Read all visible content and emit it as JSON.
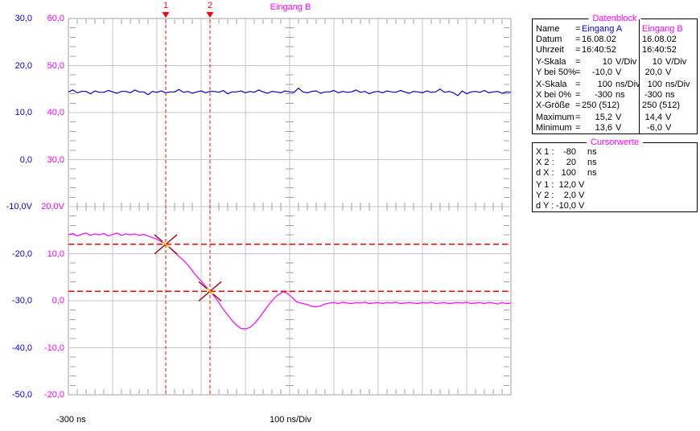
{
  "colors": {
    "channel_a": "#0000ff",
    "channel_b": "#ff00ff",
    "trace_a": "#0000cc",
    "trace_b": "#ff00ff",
    "cursor": "#ff0000",
    "cursor_x_marker": "#991111",
    "cursor_highlight": "#ffd800",
    "grid": "#c4c4c4",
    "grid_border": "#a0a0a0"
  },
  "cursors_top": {
    "marker1_label": "1",
    "marker2_label": "2"
  },
  "chart_data": {
    "type": "line",
    "title": "Eingang B",
    "x": {
      "unit": "ns",
      "min": -300,
      "max": 700,
      "per_div": 100,
      "divisions": 10,
      "start_label": "-300 ns",
      "scale_label": "100 ns/Div"
    },
    "y_left_A": {
      "name": "Eingang A",
      "unit": "V",
      "per_div": 10,
      "center_50pct": -10,
      "ticks": [
        "30,0",
        "20,0",
        "10,0",
        "0,0",
        "-10,0V",
        "-20,0",
        "-30,0",
        "-40,0",
        "-50,0"
      ]
    },
    "y_left_B": {
      "name": "Eingang B",
      "unit": "V",
      "per_div": 10,
      "center_50pct": 20,
      "ticks": [
        "60,0",
        "50,0",
        "40,0",
        "30,0",
        "20,0V",
        "10,0",
        "0,0",
        "-10,0",
        "-20,0"
      ]
    },
    "cursors": {
      "x1_ns": -80,
      "x2_ns": 20,
      "dx_ns": 100,
      "y1_v": 12.0,
      "y2_v": 2.0,
      "dy_v": -10.0
    },
    "series": [
      {
        "name": "Eingang A",
        "axis": "A",
        "color": "#0000cc",
        "t_start": -300,
        "t_step": 10,
        "values": [
          14.4,
          14.8,
          14.2,
          14.5,
          14.5,
          14.0,
          14.6,
          14.3,
          14.3,
          14.7,
          14.4,
          14.1,
          14.5,
          14.5,
          14.2,
          14.8,
          14.4,
          14.4,
          13.8,
          14.5,
          14.3,
          14.6,
          14.2,
          14.4,
          14.4,
          14.9,
          14.3,
          14.5,
          14.1,
          14.4,
          14.6,
          14.2,
          14.5,
          14.5,
          14.3,
          14.7,
          14.0,
          14.4,
          14.4,
          14.6,
          14.2,
          14.5,
          14.3,
          14.8,
          14.4,
          14.1,
          14.5,
          14.4,
          14.2,
          14.6,
          14.4,
          14.3,
          15.2,
          14.4,
          14.2,
          14.5,
          14.6,
          14.1,
          14.4,
          14.4,
          14.7,
          14.2,
          14.5,
          14.3,
          14.4,
          14.8,
          14.3,
          14.5,
          14.0,
          14.4,
          14.5,
          14.2,
          14.6,
          14.4,
          14.3,
          14.7,
          14.4,
          14.1,
          14.5,
          14.4,
          14.2,
          14.6,
          14.3,
          14.4,
          15.0,
          14.3,
          14.5,
          14.2,
          13.6,
          14.6,
          14.0,
          14.4,
          14.5,
          14.3,
          14.7,
          14.2,
          14.4,
          14.5,
          14.1,
          14.4,
          14.3
        ]
      },
      {
        "name": "Eingang B",
        "axis": "B",
        "color": "#ff00ff",
        "points": [
          [
            -300,
            14.0
          ],
          [
            -290,
            14.3
          ],
          [
            -280,
            13.8
          ],
          [
            -270,
            14.1
          ],
          [
            -260,
            14.4
          ],
          [
            -250,
            13.9
          ],
          [
            -240,
            14.2
          ],
          [
            -230,
            14.0
          ],
          [
            -220,
            14.3
          ],
          [
            -210,
            13.8
          ],
          [
            -200,
            14.1
          ],
          [
            -190,
            14.4
          ],
          [
            -180,
            13.9
          ],
          [
            -170,
            14.2
          ],
          [
            -160,
            14.0
          ],
          [
            -150,
            14.2
          ],
          [
            -140,
            13.9
          ],
          [
            -130,
            14.1
          ],
          [
            -120,
            13.8
          ],
          [
            -110,
            13.4
          ],
          [
            -100,
            13.1
          ],
          [
            -95,
            12.8
          ],
          [
            -90,
            12.5
          ],
          [
            -85,
            12.3
          ],
          [
            -80,
            12.0
          ],
          [
            -70,
            11.2
          ],
          [
            -60,
            10.3
          ],
          [
            -50,
            9.4
          ],
          [
            -40,
            8.6
          ],
          [
            -30,
            7.6
          ],
          [
            -20,
            6.4
          ],
          [
            -10,
            5.2
          ],
          [
            0,
            4.2
          ],
          [
            10,
            3.1
          ],
          [
            20,
            2.0
          ],
          [
            30,
            0.9
          ],
          [
            40,
            -0.4
          ],
          [
            50,
            -1.8
          ],
          [
            60,
            -3.0
          ],
          [
            70,
            -4.2
          ],
          [
            80,
            -5.2
          ],
          [
            90,
            -5.9
          ],
          [
            100,
            -6.0
          ],
          [
            110,
            -5.7
          ],
          [
            120,
            -4.9
          ],
          [
            130,
            -3.8
          ],
          [
            140,
            -2.5
          ],
          [
            150,
            -1.2
          ],
          [
            160,
            0.0
          ],
          [
            170,
            1.0
          ],
          [
            180,
            1.6
          ],
          [
            185,
            1.9
          ],
          [
            190,
            1.8
          ],
          [
            200,
            1.2
          ],
          [
            210,
            0.3
          ],
          [
            215,
            -0.2
          ],
          [
            220,
            -0.4
          ],
          [
            230,
            -0.6
          ],
          [
            240,
            -0.8
          ],
          [
            250,
            -1.2
          ],
          [
            260,
            -1.3
          ],
          [
            270,
            -1.1
          ],
          [
            280,
            -0.7
          ],
          [
            290,
            -0.5
          ],
          [
            300,
            -0.4
          ],
          [
            310,
            -0.6
          ],
          [
            320,
            -0.3
          ],
          [
            330,
            -0.5
          ],
          [
            340,
            -0.6
          ],
          [
            350,
            -0.4
          ],
          [
            360,
            -0.5
          ],
          [
            370,
            -0.3
          ],
          [
            380,
            -0.6
          ],
          [
            390,
            -0.5
          ],
          [
            400,
            -0.4
          ],
          [
            410,
            -0.6
          ],
          [
            420,
            -0.4
          ],
          [
            430,
            -0.5
          ],
          [
            440,
            -0.3
          ],
          [
            450,
            -0.6
          ],
          [
            460,
            -0.5
          ],
          [
            470,
            -0.4
          ],
          [
            480,
            -0.5
          ],
          [
            490,
            -0.6
          ],
          [
            500,
            -0.4
          ],
          [
            510,
            -0.5
          ],
          [
            520,
            -0.3
          ],
          [
            530,
            -0.6
          ],
          [
            540,
            -0.5
          ],
          [
            550,
            -0.4
          ],
          [
            560,
            -0.6
          ],
          [
            570,
            -0.5
          ],
          [
            580,
            -0.4
          ],
          [
            590,
            -0.5
          ],
          [
            600,
            -0.3
          ],
          [
            610,
            -0.6
          ],
          [
            620,
            -0.5
          ],
          [
            630,
            -0.4
          ],
          [
            640,
            -0.6
          ],
          [
            650,
            -0.4
          ],
          [
            660,
            -0.5
          ],
          [
            670,
            -0.7
          ],
          [
            680,
            -0.4
          ],
          [
            690,
            -0.6
          ],
          [
            700,
            -0.5
          ]
        ]
      }
    ]
  },
  "datenblock": {
    "title": "Datenblock",
    "rows": [
      {
        "label": "Name",
        "eq": "=",
        "a": {
          "text": "Eingang A",
          "color": "#0000ff"
        },
        "b": {
          "text": "Eingang B",
          "color": "#ff00ff"
        }
      },
      {
        "label": "Datum",
        "eq": "=",
        "a": {
          "text": "16.08.02"
        },
        "b": {
          "text": "16.08.02"
        }
      },
      {
        "label": "Uhrzeit",
        "eq": "=",
        "a": {
          "text": "16:40:52"
        },
        "b": {
          "text": "16:40:52"
        }
      },
      {
        "label": "Y-Skala",
        "eq": "=",
        "a": {
          "num": "10",
          "unit": "V/Div"
        },
        "b": {
          "num": "10",
          "unit": "V/Div"
        },
        "gap": true
      },
      {
        "label": "Y bei 50%",
        "eq": "=",
        "a": {
          "num": "-10,0",
          "unit": "V"
        },
        "b": {
          "num": "20,0",
          "unit": "V"
        }
      },
      {
        "label": "X-Skala",
        "eq": "=",
        "a": {
          "num": "100",
          "unit": "ns/Div"
        },
        "b": {
          "num": "100",
          "unit": "ns/Div"
        },
        "gap": true
      },
      {
        "label": "X bei 0%",
        "eq": "=",
        "a": {
          "num": "-300",
          "unit": "ns"
        },
        "b": {
          "num": "-300",
          "unit": "ns"
        }
      },
      {
        "label": "X-Größe",
        "eq": "=",
        "a": {
          "text": "250 (512)"
        },
        "b": {
          "text": "250 (512)"
        }
      },
      {
        "label": "Maximum",
        "eq": "=",
        "a": {
          "num": "15,2",
          "unit": "V"
        },
        "b": {
          "num": "14,4",
          "unit": "V"
        },
        "gap": true
      },
      {
        "label": "Minimum",
        "eq": "=",
        "a": {
          "num": "13,6",
          "unit": "V"
        },
        "b": {
          "num": "-6,0",
          "unit": "V"
        }
      }
    ]
  },
  "cursorwerte": {
    "title": "Cursorwerte",
    "rows": [
      {
        "label": "X 1 :",
        "value": "-80",
        "unit": "ns",
        "wide": true
      },
      {
        "label": "X 2 :",
        "value": "20",
        "unit": "ns",
        "wide": true
      },
      {
        "label": "d X :",
        "value": "100",
        "unit": "ns",
        "wide": true
      },
      {
        "label": "Y 1 :",
        "value": "12,0",
        "unit": "V",
        "gap": true
      },
      {
        "label": "Y 2 :",
        "value": "2,0",
        "unit": "V"
      },
      {
        "label": "d Y :",
        "value": "-10,0",
        "unit": "V"
      }
    ]
  }
}
